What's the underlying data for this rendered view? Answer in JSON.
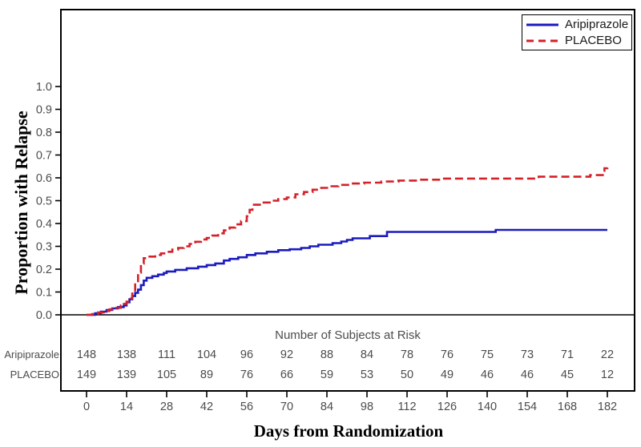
{
  "figure_title": "",
  "chart_data": {
    "type": "line",
    "subtype": "kaplan-meier-step",
    "title": "",
    "xlabel": "Days from Randomization",
    "ylabel": "Proportion with Relapse",
    "xlim": [
      0,
      182
    ],
    "ylim": [
      0.0,
      1.0
    ],
    "grid": false,
    "legend_position": "top-right",
    "xticks": [
      0,
      14,
      28,
      42,
      56,
      70,
      84,
      98,
      112,
      126,
      140,
      154,
      168,
      182
    ],
    "xtick_labels": [
      "0",
      "14",
      "28",
      "42",
      "56",
      "70",
      "84",
      "98",
      "112",
      "126",
      "140",
      "154",
      "168",
      "182"
    ],
    "yticks": [
      0.0,
      0.1,
      0.2,
      0.3,
      0.4,
      0.5,
      0.6,
      0.7,
      0.8,
      0.9,
      1.0
    ],
    "ytick_labels": [
      "0.0",
      "0.1",
      "0.2",
      "0.3",
      "0.4",
      "0.5",
      "0.6",
      "0.7",
      "0.8",
      "0.9",
      "1.0"
    ],
    "axis_color": "#000000",
    "tick_text_color": "#4c4c4c",
    "series": [
      {
        "name": "Aripiprazole",
        "color": "#1b1bbe",
        "line_style": "solid",
        "points": [
          [
            0,
            0
          ],
          [
            3,
            0.007
          ],
          [
            5,
            0.014
          ],
          [
            7,
            0.021
          ],
          [
            9,
            0.028
          ],
          [
            11,
            0.034
          ],
          [
            13,
            0.041
          ],
          [
            14,
            0.055
          ],
          [
            15,
            0.068
          ],
          [
            16,
            0.082
          ],
          [
            17,
            0.096
          ],
          [
            18,
            0.11
          ],
          [
            19,
            0.13
          ],
          [
            20,
            0.15
          ],
          [
            21,
            0.162
          ],
          [
            23,
            0.169
          ],
          [
            25,
            0.176
          ],
          [
            27,
            0.183
          ],
          [
            28,
            0.19
          ],
          [
            31,
            0.197
          ],
          [
            35,
            0.204
          ],
          [
            39,
            0.211
          ],
          [
            42,
            0.218
          ],
          [
            45,
            0.225
          ],
          [
            48,
            0.238
          ],
          [
            50,
            0.245
          ],
          [
            53,
            0.252
          ],
          [
            56,
            0.262
          ],
          [
            59,
            0.269
          ],
          [
            63,
            0.276
          ],
          [
            67,
            0.283
          ],
          [
            71,
            0.287
          ],
          [
            75,
            0.293
          ],
          [
            78,
            0.3
          ],
          [
            81,
            0.307
          ],
          [
            86,
            0.314
          ],
          [
            89,
            0.321
          ],
          [
            91,
            0.328
          ],
          [
            93,
            0.335
          ],
          [
            99,
            0.345
          ],
          [
            105,
            0.363
          ],
          [
            143,
            0.372
          ],
          [
            182,
            0.372
          ]
        ]
      },
      {
        "name": "PLACEBO",
        "color": "#d42129",
        "line_style": "dashed",
        "points": [
          [
            0,
            0
          ],
          [
            2,
            0.003
          ],
          [
            4,
            0.01
          ],
          [
            6,
            0.017
          ],
          [
            8,
            0.024
          ],
          [
            10,
            0.031
          ],
          [
            12,
            0.041
          ],
          [
            13,
            0.048
          ],
          [
            14,
            0.058
          ],
          [
            15,
            0.072
          ],
          [
            16,
            0.1
          ],
          [
            17,
            0.14
          ],
          [
            18,
            0.185
          ],
          [
            19,
            0.225
          ],
          [
            20,
            0.248
          ],
          [
            22,
            0.255
          ],
          [
            24,
            0.262
          ],
          [
            26,
            0.269
          ],
          [
            28,
            0.276
          ],
          [
            30,
            0.286
          ],
          [
            32,
            0.293
          ],
          [
            34,
            0.3
          ],
          [
            36,
            0.31
          ],
          [
            38,
            0.32
          ],
          [
            40,
            0.33
          ],
          [
            42,
            0.337
          ],
          [
            44,
            0.347
          ],
          [
            46,
            0.357
          ],
          [
            48,
            0.37
          ],
          [
            50,
            0.382
          ],
          [
            52,
            0.396
          ],
          [
            54,
            0.41
          ],
          [
            56,
            0.432
          ],
          [
            57,
            0.46
          ],
          [
            58,
            0.482
          ],
          [
            61,
            0.492
          ],
          [
            64,
            0.5
          ],
          [
            67,
            0.507
          ],
          [
            70,
            0.514
          ],
          [
            73,
            0.528
          ],
          [
            76,
            0.538
          ],
          [
            79,
            0.548
          ],
          [
            82,
            0.556
          ],
          [
            85,
            0.563
          ],
          [
            88,
            0.569
          ],
          [
            92,
            0.575
          ],
          [
            97,
            0.579
          ],
          [
            103,
            0.584
          ],
          [
            109,
            0.588
          ],
          [
            116,
            0.592
          ],
          [
            124,
            0.597
          ],
          [
            158,
            0.605
          ],
          [
            176,
            0.612
          ],
          [
            181,
            0.642
          ],
          [
            182,
            0.645
          ]
        ]
      }
    ],
    "risk_table": {
      "title": "Number of Subjects at Risk",
      "days": [
        0,
        14,
        28,
        42,
        56,
        70,
        84,
        98,
        112,
        126,
        140,
        154,
        168,
        182
      ],
      "rows": [
        {
          "label": "Aripiprazole",
          "counts": [
            148,
            138,
            111,
            104,
            96,
            92,
            88,
            84,
            78,
            76,
            75,
            73,
            71,
            22
          ]
        },
        {
          "label": "PLACEBO",
          "counts": [
            149,
            139,
            105,
            89,
            76,
            66,
            59,
            53,
            50,
            49,
            46,
            46,
            45,
            12
          ]
        }
      ]
    }
  }
}
